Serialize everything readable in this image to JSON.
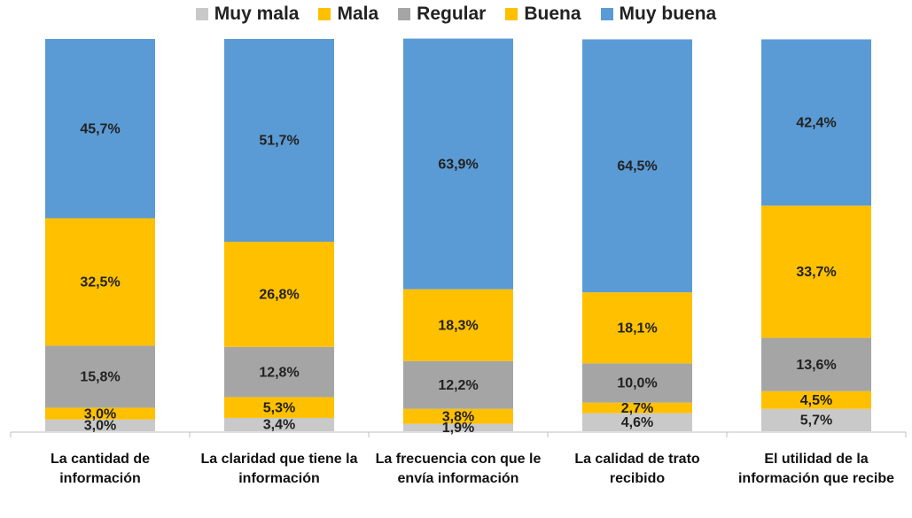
{
  "chart_data": {
    "type": "stacked-bar",
    "categories": [
      "La cantidad de información",
      "La claridad que tiene la información",
      "La frecuencia con que le envía información",
      "La calidad de trato recibido",
      "El utilidad de la información que recibe"
    ],
    "ylim": [
      0,
      100
    ],
    "legend": "top",
    "series": [
      {
        "name": "Muy mala",
        "color": "#c9c9c9",
        "values": [
          3.0,
          3.4,
          1.9,
          4.6,
          5.7
        ],
        "value_labels": [
          "3,0%",
          "3,4%",
          "1,9%",
          "4,6%",
          "5,7%"
        ]
      },
      {
        "name": "Mala",
        "color": "#ffc000",
        "values": [
          3.0,
          5.3,
          3.8,
          2.7,
          4.5
        ],
        "value_labels": [
          "3,0%",
          "5,3%",
          "3,8%",
          "2,7%",
          "4,5%"
        ]
      },
      {
        "name": "Regular",
        "color": "#a5a5a5",
        "values": [
          15.8,
          12.8,
          12.2,
          10.0,
          13.6
        ],
        "value_labels": [
          "15,8%",
          "12,8%",
          "12,2%",
          "10,0%",
          "13,6%"
        ]
      },
      {
        "name": "Buena",
        "color": "#ffc000",
        "values": [
          32.5,
          26.8,
          18.3,
          18.1,
          33.7
        ],
        "value_labels": [
          "32,5%",
          "26,8%",
          "18,3%",
          "18,1%",
          "33,7%"
        ]
      },
      {
        "name": "Muy buena",
        "color": "#5b9bd5",
        "values": [
          45.7,
          51.7,
          63.9,
          64.5,
          42.4
        ],
        "value_labels": [
          "45,7%",
          "51,7%",
          "63,9%",
          "64,5%",
          "42,4%"
        ]
      }
    ]
  }
}
